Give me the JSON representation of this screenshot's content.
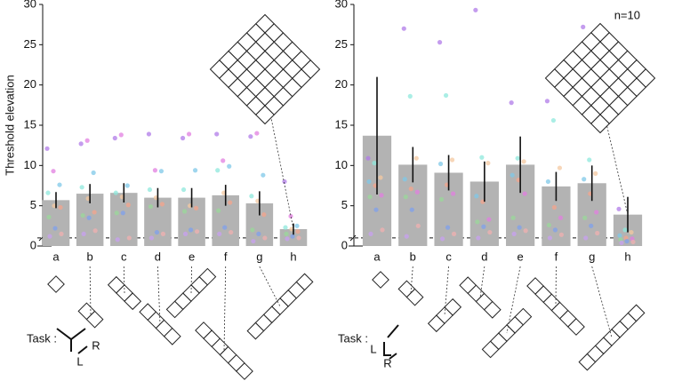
{
  "chart_data": [
    {
      "type": "bar",
      "ylabel": "Threshold elevation",
      "categories": [
        "a",
        "b",
        "c",
        "d",
        "e",
        "f",
        "g",
        "h"
      ],
      "values": [
        5.7,
        6.5,
        6.6,
        6.0,
        6.0,
        6.3,
        5.3,
        2.1
      ],
      "errors": [
        1.0,
        1.2,
        1.2,
        1.2,
        1.2,
        1.3,
        1.5,
        0.7
      ],
      "points": [
        [
          12.1,
          9.3,
          7.6,
          6.6,
          5.0,
          4.8,
          3.6,
          2.2,
          1.5,
          1.2
        ],
        [
          12.7,
          13.1,
          9.1,
          7.3,
          5.9,
          4.2,
          3.8,
          3.5,
          1.9,
          1.5
        ],
        [
          13.4,
          13.8,
          7.5,
          6.6,
          6.1,
          5.1,
          4.1,
          4.1,
          1.0,
          0.8
        ],
        [
          13.9,
          9.4,
          9.3,
          7.0,
          6.0,
          5.2,
          4.9,
          1.7,
          1.5,
          1.0
        ],
        [
          13.4,
          13.9,
          9.4,
          7.0,
          5.0,
          4.7,
          4.3,
          2.0,
          1.8,
          1.5
        ],
        [
          13.9,
          10.6,
          9.9,
          9.4,
          6.6,
          5.4,
          4.4,
          2.3,
          1.7,
          1.5
        ],
        [
          13.6,
          14.0,
          8.8,
          6.2,
          5.6,
          3.9,
          2.0,
          1.5,
          1.0,
          0.6
        ],
        [
          8.0,
          3.7,
          2.5,
          2.3,
          2.1,
          1.8,
          1.5,
          1.2,
          1.0,
          0.9
        ]
      ],
      "point_colors": [
        "#b07be8",
        "#e27fe0",
        "#7fc8e8",
        "#8ee8dc",
        "#f4c8a0",
        "#f4a48c",
        "#9ad89a",
        "#7fa0ec",
        "#f0b0b0",
        "#c8a0f0"
      ],
      "color": "#b3b3b3",
      "reference_line": 1,
      "ylim": [
        0,
        30
      ],
      "yticks": [
        0,
        5,
        10,
        15,
        20,
        25,
        30
      ]
    },
    {
      "type": "bar",
      "annotation": "n=10",
      "categories": [
        "a",
        "b",
        "c",
        "d",
        "e",
        "f",
        "g",
        "h"
      ],
      "values": [
        13.7,
        10.1,
        9.1,
        8.0,
        10.1,
        7.4,
        7.8,
        3.9
      ],
      "errors": [
        7.3,
        2.2,
        2.2,
        2.5,
        3.5,
        1.8,
        2.2,
        2.2
      ],
      "points": [
        [
          10.9,
          10.3,
          8.5,
          8.0,
          7.5,
          6.3,
          6.1,
          4.5,
          2.0,
          1.5
        ],
        [
          27.0,
          18.6,
          10.9,
          8.3,
          7.1,
          6.7,
          6.1,
          4.5,
          2.5,
          1.2
        ],
        [
          25.3,
          18.7,
          10.7,
          10.2,
          7.6,
          6.5,
          5.8,
          2.3,
          1.5,
          0.9
        ],
        [
          29.3,
          11.0,
          10.3,
          6.2,
          5.5,
          3.3,
          3.0,
          2.4,
          1.7,
          1.0
        ],
        [
          17.8,
          10.9,
          10.5,
          8.8,
          8.2,
          6.5,
          3.5,
          2.3,
          1.9,
          1.5
        ],
        [
          18.0,
          15.6,
          9.7,
          8.0,
          4.8,
          3.5,
          2.6,
          2.0,
          1.4,
          1.0
        ],
        [
          27.2,
          10.7,
          9.0,
          8.3,
          6.5,
          4.2,
          3.5,
          2.5,
          1.6,
          1.0
        ],
        [
          4.6,
          2.0,
          1.7,
          1.3,
          1.0,
          0.9,
          0.8,
          0.6,
          0.5,
          0.4
        ]
      ],
      "point_colors": [
        "#b07be8",
        "#8ee8dc",
        "#f4c8a0",
        "#7fc8e8",
        "#f4a48c",
        "#e27fe0",
        "#9ad89a",
        "#7fa0ec",
        "#f0b0b0",
        "#c8a0f0"
      ],
      "color": "#b3b3b3",
      "reference_line": 1,
      "ylim": [
        0,
        30
      ],
      "yticks": [
        0,
        5,
        10,
        15,
        20,
        25,
        30
      ]
    }
  ],
  "task": [
    {
      "label": "Task :",
      "left": "L",
      "right": "R"
    },
    {
      "label": "Task :",
      "left": "L",
      "right": "R"
    }
  ]
}
